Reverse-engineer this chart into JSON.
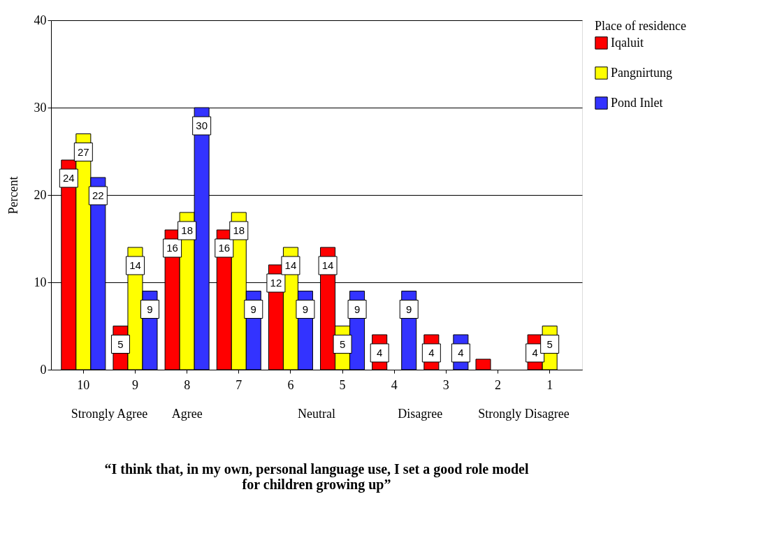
{
  "chart_data": {
    "type": "bar",
    "title": "“I think that, in my own, personal language use, I set a good role model\nfor children growing up”",
    "ylabel": "Percent",
    "legend_title": "Place of residence",
    "categories": [
      "10",
      "9",
      "8",
      "7",
      "6",
      "5",
      "4",
      "3",
      "2",
      "1"
    ],
    "series": [
      {
        "name": "Iqaluit",
        "color": "#ff0000",
        "values": [
          24,
          5,
          16,
          16,
          12,
          14,
          4,
          4,
          1.2,
          4
        ],
        "value_labels": [
          "24",
          "5",
          "16",
          "16",
          "12",
          "14",
          "4",
          "4",
          null,
          "4"
        ]
      },
      {
        "name": "Pangnirtung",
        "color": "#ffff00",
        "values": [
          27,
          14,
          18,
          18,
          14,
          5,
          0,
          0,
          0,
          5
        ],
        "value_labels": [
          "27",
          "14",
          "18",
          "18",
          "14",
          "5",
          null,
          null,
          null,
          "5"
        ]
      },
      {
        "name": "Pond Inlet",
        "color": "#3333ff",
        "values": [
          22,
          9,
          30,
          9,
          9,
          9,
          9,
          4,
          0,
          0
        ],
        "value_labels": [
          "22",
          "9",
          "30",
          "9",
          "9",
          "9",
          "9",
          "4",
          null,
          null
        ]
      }
    ],
    "annotations": [
      "Strongly Agree",
      "Agree",
      "Neutral",
      "Disagree",
      "Strongly Disagree"
    ],
    "ylim": [
      0,
      40
    ],
    "yticks": [
      0,
      10,
      20,
      30,
      40
    ],
    "grid": "y",
    "legend": "right"
  }
}
